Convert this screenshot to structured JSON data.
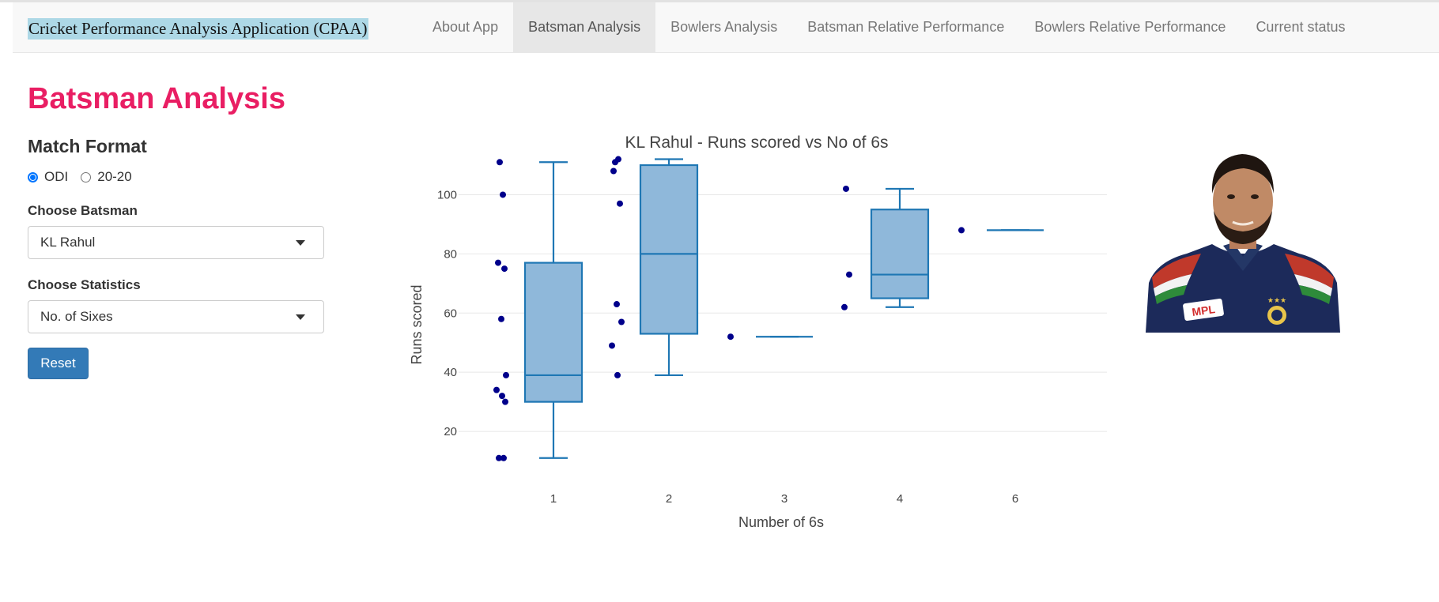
{
  "app": {
    "brand": "Cricket Performance Analysis Application (CPAA)"
  },
  "nav": {
    "tabs": [
      {
        "label": "About App",
        "active": false
      },
      {
        "label": "Batsman Analysis",
        "active": true
      },
      {
        "label": "Bowlers Analysis",
        "active": false
      },
      {
        "label": "Batsman Relative Performance",
        "active": false
      },
      {
        "label": "Bowlers Relative Performance",
        "active": false
      },
      {
        "label": "Current status",
        "active": false
      }
    ]
  },
  "sidebar": {
    "title": "Batsman Analysis",
    "match_format": {
      "label": "Match Format",
      "options": [
        {
          "label": "ODI",
          "selected": true
        },
        {
          "label": "20-20",
          "selected": false
        }
      ]
    },
    "batsman": {
      "label": "Choose Batsman",
      "value": "KL Rahul"
    },
    "statistics": {
      "label": "Choose Statistics",
      "value": "No. of Sixes"
    },
    "reset_label": "Reset"
  },
  "colors": {
    "title": "#e91e63",
    "brand_highlight": "#add8e6",
    "box_fill": "#8fb8da",
    "box_stroke": "#1f77b4",
    "points": "#00008b",
    "button": "#337ab7"
  },
  "player_photo": {
    "icon": "player-portrait"
  },
  "chart_data": {
    "type": "box",
    "title": "KL Rahul - Runs scored vs No of 6s",
    "xlabel": "Number of 6s",
    "ylabel": "Runs scored",
    "categories": [
      "1",
      "2",
      "3",
      "4",
      "6"
    ],
    "yticks": [
      20,
      40,
      60,
      80,
      100
    ],
    "ylim": [
      7,
      115
    ],
    "grid": true,
    "boxes": [
      {
        "category": "1",
        "min": 11,
        "q1": 30,
        "median": 39,
        "q3": 77,
        "max": 111
      },
      {
        "category": "2",
        "min": 39,
        "q1": 53,
        "median": 80,
        "q3": 110,
        "max": 112
      },
      {
        "category": "3",
        "min": 52,
        "q1": 52,
        "median": 52,
        "q3": 52,
        "max": 52
      },
      {
        "category": "4",
        "min": 62,
        "q1": 65,
        "median": 73,
        "q3": 95,
        "max": 102
      },
      {
        "category": "6",
        "min": 88,
        "q1": 88,
        "median": 88,
        "q3": 88,
        "max": 88
      }
    ],
    "points": [
      {
        "category": "1",
        "values": [
          111,
          100,
          77,
          75,
          58,
          39,
          34,
          32,
          30,
          11,
          11
        ]
      },
      {
        "category": "2",
        "values": [
          111,
          112,
          108,
          97,
          63,
          57,
          49,
          39
        ]
      },
      {
        "category": "3",
        "values": [
          52
        ]
      },
      {
        "category": "4",
        "values": [
          102,
          73,
          62
        ]
      },
      {
        "category": "6",
        "values": [
          88
        ]
      }
    ]
  }
}
